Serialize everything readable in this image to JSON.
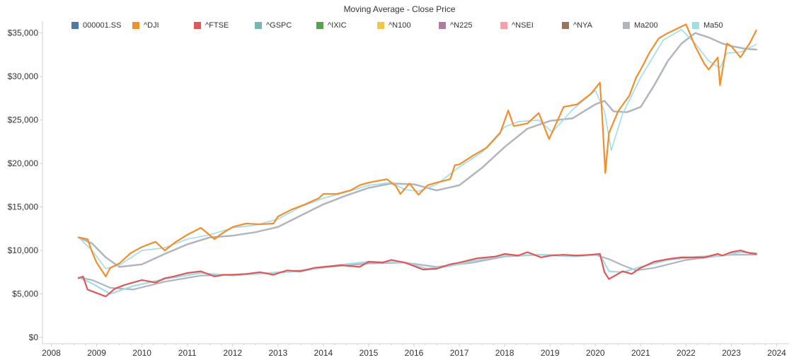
{
  "chart_data": {
    "type": "line",
    "title": "Moving Average - Close Price",
    "xlabel": "",
    "ylabel": "",
    "xlim": [
      2008,
      2024
    ],
    "ylim": [
      0,
      37500
    ],
    "x_ticks": [
      "2008",
      "2009",
      "2010",
      "2011",
      "2012",
      "2013",
      "2014",
      "2015",
      "2016",
      "2017",
      "2018",
      "2019",
      "2020",
      "2021",
      "2022",
      "2023",
      "2024"
    ],
    "y_ticks": [
      {
        "value": 0,
        "label": "$0"
      },
      {
        "value": 5000,
        "label": "$5,000"
      },
      {
        "value": 10000,
        "label": "$10,000"
      },
      {
        "value": 15000,
        "label": "$15,000"
      },
      {
        "value": 20000,
        "label": "$20,000"
      },
      {
        "value": 25000,
        "label": "$25,000"
      },
      {
        "value": 30000,
        "label": "$30,000"
      },
      {
        "value": 35000,
        "label": "$35,000"
      }
    ],
    "grid": false,
    "legend_position": "top",
    "legend": [
      {
        "name": "000001.SS",
        "color": "#4e79a7"
      },
      {
        "name": "^DJI",
        "color": "#f28e2b"
      },
      {
        "name": "^FTSE",
        "color": "#e15759"
      },
      {
        "name": "^GSPC",
        "color": "#76b7b2"
      },
      {
        "name": "^IXIC",
        "color": "#59a14f"
      },
      {
        "name": "^N100",
        "color": "#edc948"
      },
      {
        "name": "^N225",
        "color": "#b07aa1"
      },
      {
        "name": "^NSEI",
        "color": "#ff9da7"
      },
      {
        "name": "^NYA",
        "color": "#9c755f"
      },
      {
        "name": "Ma200",
        "color": "#b0b5bf"
      },
      {
        "name": "Ma50",
        "color": "#9fdde8"
      }
    ],
    "series": [
      {
        "name": "^DJI",
        "color": "#f28e2b",
        "x": [
          2008.6,
          2008.8,
          2008.9,
          2009.0,
          2009.1,
          2009.2,
          2009.3,
          2009.5,
          2009.75,
          2010.0,
          2010.3,
          2010.5,
          2010.75,
          2011.0,
          2011.3,
          2011.6,
          2011.75,
          2012.0,
          2012.3,
          2012.6,
          2012.9,
          2013.0,
          2013.3,
          2013.6,
          2013.9,
          2014.0,
          2014.3,
          2014.6,
          2014.8,
          2015.0,
          2015.4,
          2015.6,
          2015.7,
          2015.9,
          2016.1,
          2016.3,
          2016.5,
          2016.8,
          2016.9,
          2017.0,
          2017.3,
          2017.6,
          2017.9,
          2018.08,
          2018.2,
          2018.5,
          2018.75,
          2018.98,
          2019.3,
          2019.6,
          2019.9,
          2020.1,
          2020.15,
          2020.22,
          2020.3,
          2020.5,
          2020.75,
          2020.9,
          2021.0,
          2021.2,
          2021.4,
          2021.6,
          2021.8,
          2022.0,
          2022.2,
          2022.4,
          2022.5,
          2022.7,
          2022.75,
          2022.9,
          2023.0,
          2023.2,
          2023.4,
          2023.55
        ],
        "values": [
          11500,
          11300,
          9800,
          8600,
          7800,
          7000,
          8000,
          8500,
          9700,
          10400,
          11000,
          10000,
          11000,
          11800,
          12600,
          11300,
          11900,
          12700,
          13100,
          13000,
          13100,
          13900,
          14700,
          15300,
          16000,
          16500,
          16500,
          16900,
          17500,
          17800,
          18200,
          17400,
          16500,
          17700,
          16400,
          17500,
          17800,
          18200,
          19800,
          19900,
          20900,
          21800,
          23500,
          26100,
          24300,
          24600,
          25800,
          22800,
          26500,
          26800,
          28000,
          29300,
          25400,
          18900,
          23500,
          26000,
          27800,
          29900,
          30800,
          32800,
          34400,
          35000,
          35500,
          36000,
          33500,
          31500,
          30800,
          32200,
          29000,
          33800,
          33500,
          32200,
          33800,
          35300
        ]
      },
      {
        "name": "^FTSE",
        "color": "#e15759",
        "x": [
          2008.6,
          2008.7,
          2008.8,
          2009.0,
          2009.2,
          2009.4,
          2009.6,
          2009.8,
          2010.0,
          2010.3,
          2010.5,
          2010.7,
          2011.0,
          2011.3,
          2011.6,
          2011.8,
          2012.0,
          2012.3,
          2012.6,
          2012.9,
          2013.2,
          2013.5,
          2013.8,
          2014.0,
          2014.4,
          2014.8,
          2015.0,
          2015.3,
          2015.5,
          2015.8,
          2016.0,
          2016.2,
          2016.5,
          2016.8,
          2017.0,
          2017.4,
          2017.8,
          2018.0,
          2018.3,
          2018.5,
          2018.8,
          2019.0,
          2019.3,
          2019.6,
          2019.9,
          2020.1,
          2020.2,
          2020.3,
          2020.6,
          2020.8,
          2021.0,
          2021.3,
          2021.6,
          2021.9,
          2022.2,
          2022.4,
          2022.7,
          2022.8,
          2023.0,
          2023.2,
          2023.4,
          2023.55
        ],
        "values": [
          6800,
          7000,
          5500,
          5100,
          4700,
          5600,
          6000,
          6300,
          6600,
          6300,
          6800,
          7000,
          7400,
          7600,
          7000,
          7200,
          7200,
          7300,
          7500,
          7200,
          7700,
          7600,
          8000,
          8100,
          8300,
          8100,
          8700,
          8600,
          8900,
          8600,
          8200,
          7800,
          7900,
          8400,
          8600,
          9100,
          9300,
          9600,
          9400,
          9800,
          9200,
          9400,
          9500,
          9400,
          9500,
          9600,
          7500,
          6700,
          7600,
          7300,
          8000,
          8700,
          9000,
          9200,
          9200,
          9200,
          9600,
          9400,
          9800,
          10000,
          9700,
          9600
        ]
      },
      {
        "name": "Ma200",
        "color": "#b0b5bf",
        "x": [
          2008.6,
          2008.9,
          2009.2,
          2009.5,
          2010.0,
          2010.5,
          2011.0,
          2011.5,
          2012.0,
          2012.5,
          2013.0,
          2013.5,
          2014.0,
          2014.5,
          2015.0,
          2015.5,
          2016.0,
          2016.5,
          2017.0,
          2017.5,
          2018.0,
          2018.5,
          2019.0,
          2019.5,
          2020.0,
          2020.2,
          2020.4,
          2020.7,
          2021.0,
          2021.3,
          2021.6,
          2021.9,
          2022.2,
          2022.5,
          2022.8,
          2023.0,
          2023.3,
          2023.55
        ],
        "values": [
          11500,
          10800,
          9200,
          8100,
          8400,
          9600,
          10700,
          11500,
          11700,
          12100,
          12700,
          14000,
          15300,
          16300,
          17200,
          17700,
          17600,
          16900,
          17500,
          19500,
          21900,
          24000,
          24900,
          25200,
          26800,
          27200,
          26000,
          25900,
          26500,
          29000,
          31800,
          33800,
          35000,
          34500,
          33800,
          33500,
          33200,
          33100
        ]
      },
      {
        "name": "Ma50",
        "color": "#9fdde8",
        "x": [
          2008.6,
          2008.9,
          2009.2,
          2009.5,
          2010.0,
          2010.5,
          2011.0,
          2011.5,
          2012.0,
          2012.5,
          2013.0,
          2013.5,
          2014.0,
          2014.5,
          2015.0,
          2015.5,
          2015.8,
          2016.1,
          2016.5,
          2017.0,
          2017.5,
          2018.0,
          2018.3,
          2018.75,
          2019.05,
          2019.5,
          2020.0,
          2020.2,
          2020.35,
          2020.6,
          2021.0,
          2021.5,
          2021.9,
          2022.2,
          2022.5,
          2022.75,
          2022.9,
          2023.2,
          2023.55
        ],
        "values": [
          11500,
          10000,
          7900,
          8300,
          10000,
          10300,
          11300,
          11800,
          12600,
          12900,
          13600,
          15000,
          16000,
          16700,
          17500,
          17800,
          17000,
          16800,
          17600,
          19600,
          21300,
          24200,
          24800,
          25000,
          23600,
          26200,
          28400,
          26000,
          21500,
          25700,
          29900,
          34200,
          35400,
          33800,
          31800,
          31000,
          32700,
          32800,
          33700
        ]
      },
      {
        "name": "Ma200 (FTSE)",
        "color": "#b0b5bf",
        "x": [
          2008.6,
          2008.9,
          2009.3,
          2009.8,
          2010.5,
          2011.3,
          2012.0,
          2012.8,
          2013.5,
          2014.3,
          2015.0,
          2015.8,
          2016.5,
          2017.3,
          2018.0,
          2018.8,
          2019.5,
          2020.0,
          2020.3,
          2020.6,
          2020.9,
          2021.3,
          2022.0,
          2022.6,
          2023.0,
          2023.55
        ],
        "values": [
          6900,
          6600,
          5700,
          5500,
          6400,
          7100,
          7200,
          7400,
          7700,
          8200,
          8500,
          8600,
          8100,
          8600,
          9300,
          9500,
          9400,
          9500,
          9000,
          8300,
          7700,
          8000,
          8900,
          9300,
          9500,
          9500
        ]
      },
      {
        "name": "Ma50 (FTSE)",
        "color": "#9fdde8",
        "x": [
          2008.6,
          2008.9,
          2009.3,
          2009.8,
          2010.5,
          2011.3,
          2012.0,
          2012.8,
          2013.5,
          2014.3,
          2015.0,
          2015.8,
          2016.3,
          2016.8,
          2017.3,
          2018.0,
          2018.8,
          2019.5,
          2020.1,
          2020.3,
          2020.6,
          2021.0,
          2021.6,
          2022.3,
          2022.8,
          2023.2,
          2023.55
        ],
        "values": [
          6900,
          6200,
          5000,
          5900,
          6700,
          7400,
          7100,
          7400,
          7600,
          8300,
          8700,
          8600,
          7900,
          8200,
          8800,
          9400,
          9500,
          9300,
          9500,
          7600,
          7500,
          8100,
          8900,
          9300,
          9400,
          9800,
          9700
        ]
      }
    ]
  }
}
